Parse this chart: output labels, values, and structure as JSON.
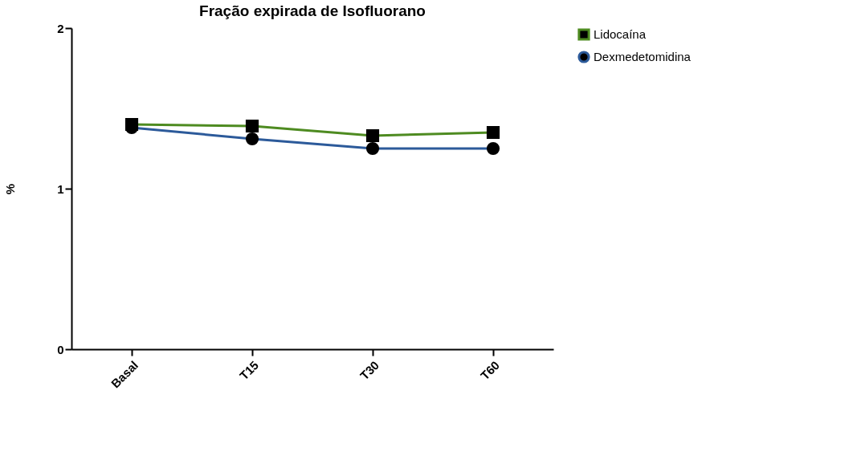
{
  "chart_data": {
    "type": "line",
    "title": "Fração expirada de Isofluorano",
    "ylabel": "%",
    "categories": [
      "Basal",
      "T15",
      "T30",
      "T60"
    ],
    "series": [
      {
        "name": "Lidocaína",
        "color": "#4e8b21",
        "marker": "square",
        "values": [
          1.4,
          1.39,
          1.33,
          1.35
        ]
      },
      {
        "name": "Dexmedetomidina",
        "color": "#2c5a9a",
        "marker": "circle",
        "values": [
          1.38,
          1.31,
          1.25,
          1.25
        ]
      }
    ],
    "ylim": [
      0,
      2
    ],
    "yticks": [
      0,
      1,
      2
    ],
    "grid": false,
    "legend": "top right"
  }
}
